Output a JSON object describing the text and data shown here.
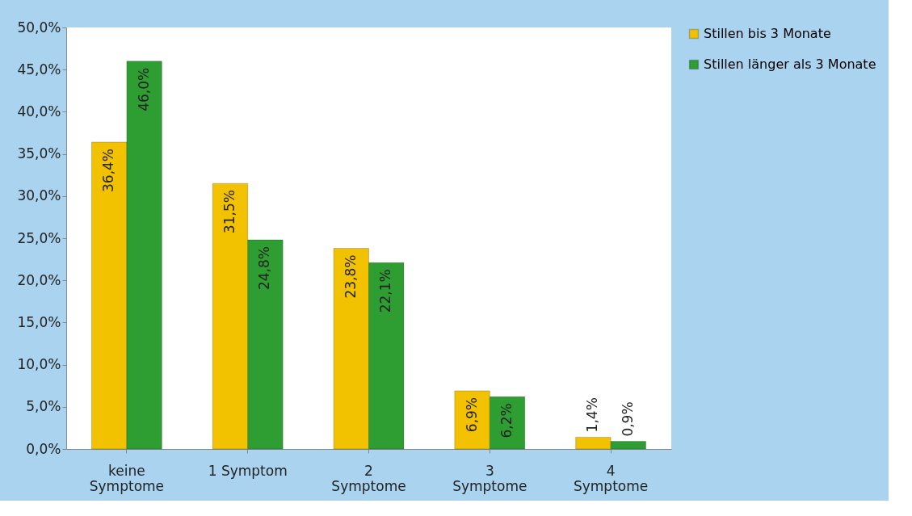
{
  "chart_data": {
    "type": "bar",
    "categories": [
      "keine\nSymptome",
      "1 Symptom",
      "2\nSymptome",
      "3\nSymptome",
      "4\nSymptome"
    ],
    "series": [
      {
        "name": "Stillen bis 3 Monate",
        "color": "#f2c200",
        "values": [
          36.4,
          31.5,
          23.8,
          6.9,
          1.4
        ],
        "value_labels": [
          "36,4%",
          "31,5%",
          "23,8%",
          "6,9%",
          "1,4%"
        ]
      },
      {
        "name": "Stillen länger als 3 Monate",
        "color": "#2e9e32",
        "values": [
          46.0,
          24.8,
          22.1,
          6.2,
          0.9
        ],
        "value_labels": [
          "46,0%",
          "24,8%",
          "22,1%",
          "6,2%",
          "0,9%"
        ]
      }
    ],
    "ylim": [
      0,
      50
    ],
    "yticks": [
      {
        "value": 0,
        "label": "0,0%"
      },
      {
        "value": 5,
        "label": "5,0%"
      },
      {
        "value": 10,
        "label": "10,0%"
      },
      {
        "value": 15,
        "label": "15,0%"
      },
      {
        "value": 20,
        "label": "20,0%"
      },
      {
        "value": 25,
        "label": "25,0%"
      },
      {
        "value": 30,
        "label": "30,0%"
      },
      {
        "value": 35,
        "label": "35,0%"
      },
      {
        "value": 40,
        "label": "40,0%"
      },
      {
        "value": 45,
        "label": "45,0%"
      },
      {
        "value": 50,
        "label": "50,0%"
      }
    ],
    "grid": false,
    "legend": "right"
  }
}
